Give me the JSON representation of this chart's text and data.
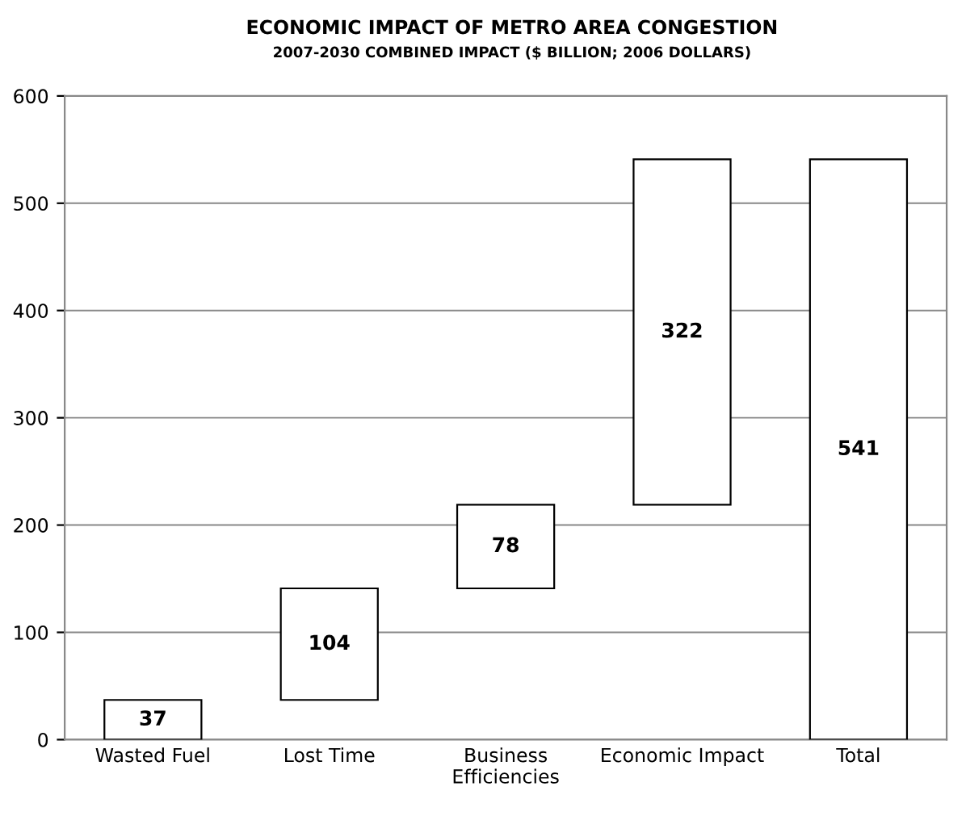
{
  "chart_data": {
    "type": "bar",
    "title": "ECONOMIC IMPACT OF METRO AREA CONGESTION",
    "subtitle": "2007-2030 COMBINED IMPACT ($ BILLION; 2006 DOLLARS)",
    "categories": [
      "Wasted Fuel",
      "Lost Time",
      "Business\nEfficiencies",
      "Economic Impact",
      "Total"
    ],
    "values": [
      37,
      104,
      78,
      322,
      541
    ],
    "base": [
      0,
      37,
      141,
      219,
      0
    ],
    "color": "#ffffff",
    "ylim": [
      0,
      600
    ],
    "yticks": [
      0,
      100,
      200,
      300,
      400,
      500,
      600
    ],
    "grid": "y",
    "data_labels": true,
    "legend": false
  }
}
